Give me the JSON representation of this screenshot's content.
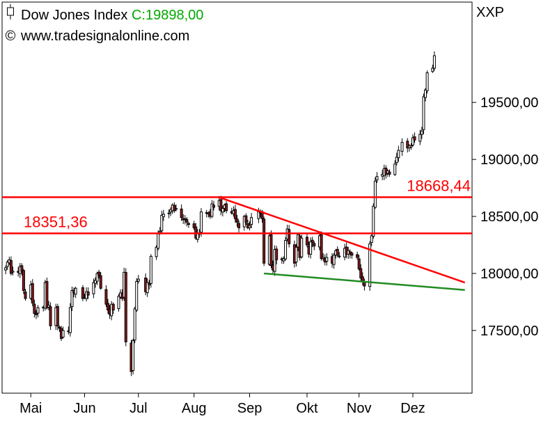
{
  "header": {
    "title": "Dow Jones Index",
    "close_label": "C:19898,00",
    "copyright_symbol": "©",
    "source": "www.tradesignalonline.com",
    "symbol": "XXP"
  },
  "colors": {
    "up_candle": "#ffffff",
    "down_candle": "#8b1a1a",
    "wick": "#000000",
    "resistance": "#ff0000",
    "support": "#228b22",
    "close_value": "#00aa00"
  },
  "chart_data": {
    "type": "candlestick",
    "title": "Dow Jones Index",
    "ylabel": "",
    "xlabel": "",
    "ylim": [
      16950,
      20380
    ],
    "y_ticks": [
      "17500,00",
      "18000,00",
      "18500,00",
      "19000,00",
      "19500,00"
    ],
    "y_tick_values": [
      17500,
      18000,
      18500,
      19000,
      19500
    ],
    "x_ticks": [
      "Mai",
      "Jun",
      "Jul",
      "Aug",
      "Sep",
      "Okt",
      "Nov",
      "Dez"
    ],
    "x_tick_dates": [
      "2016-05-02",
      "2016-06-01",
      "2016-07-01",
      "2016-08-01",
      "2016-09-01",
      "2016-10-03",
      "2016-11-01",
      "2016-12-01"
    ],
    "horizontal_lines": [
      {
        "value": 18351.36,
        "label": "18351,36",
        "color": "#ff0000"
      },
      {
        "value": 18668.44,
        "label": "18668,44",
        "color": "#ff0000"
      }
    ],
    "trendlines": [
      {
        "name": "",
        "from": [
          "2016-08-15",
          18668
        ],
        "to": [
          "2016-12-30",
          17920
        ],
        "color": "#ff0000"
      },
      {
        "name": "",
        "from": [
          "2016-09-09",
          18000
        ],
        "to": [
          "2016-12-30",
          17855
        ],
        "color": "#228b22"
      }
    ],
    "closes": [
      [
        "2016-04-18",
        18050
      ],
      [
        "2016-04-19",
        18100
      ],
      [
        "2016-04-20",
        18120
      ],
      [
        "2016-04-21",
        18000
      ],
      [
        "2016-04-22",
        18020
      ],
      [
        "2016-04-25",
        18010
      ],
      [
        "2016-04-26",
        18060
      ],
      [
        "2016-04-27",
        18020
      ],
      [
        "2016-04-28",
        17850
      ],
      [
        "2016-04-29",
        17780
      ],
      [
        "2016-05-02",
        17900
      ],
      [
        "2016-05-03",
        17740
      ],
      [
        "2016-05-04",
        17650
      ],
      [
        "2016-05-05",
        17640
      ],
      [
        "2016-05-06",
        17700
      ],
      [
        "2016-05-09",
        17705
      ],
      [
        "2016-05-10",
        17920
      ],
      [
        "2016-05-11",
        17700
      ],
      [
        "2016-05-12",
        17720
      ],
      [
        "2016-05-13",
        17540
      ],
      [
        "2016-05-16",
        17700
      ],
      [
        "2016-05-17",
        17540
      ],
      [
        "2016-05-18",
        17520
      ],
      [
        "2016-05-19",
        17430
      ],
      [
        "2016-05-20",
        17500
      ],
      [
        "2016-05-23",
        17490
      ],
      [
        "2016-05-24",
        17700
      ],
      [
        "2016-05-25",
        17850
      ],
      [
        "2016-05-26",
        17830
      ],
      [
        "2016-05-27",
        17870
      ],
      [
        "2016-05-31",
        17780
      ],
      [
        "2016-06-01",
        17790
      ],
      [
        "2016-06-02",
        17840
      ],
      [
        "2016-06-03",
        17810
      ],
      [
        "2016-06-06",
        17920
      ],
      [
        "2016-06-07",
        17940
      ],
      [
        "2016-06-08",
        18000
      ],
      [
        "2016-06-09",
        17980
      ],
      [
        "2016-06-10",
        17870
      ],
      [
        "2016-06-13",
        17730
      ],
      [
        "2016-06-14",
        17680
      ],
      [
        "2016-06-15",
        17640
      ],
      [
        "2016-06-16",
        17730
      ],
      [
        "2016-06-17",
        17680
      ],
      [
        "2016-06-20",
        17800
      ],
      [
        "2016-06-21",
        17830
      ],
      [
        "2016-06-22",
        17780
      ],
      [
        "2016-06-23",
        18010
      ],
      [
        "2016-06-24",
        17400
      ],
      [
        "2016-06-27",
        17140
      ],
      [
        "2016-06-28",
        17410
      ],
      [
        "2016-06-29",
        17690
      ],
      [
        "2016-06-30",
        17930
      ],
      [
        "2016-07-01",
        17950
      ],
      [
        "2016-07-05",
        17840
      ],
      [
        "2016-07-06",
        17920
      ],
      [
        "2016-07-07",
        17900
      ],
      [
        "2016-07-08",
        18150
      ],
      [
        "2016-07-11",
        18230
      ],
      [
        "2016-07-12",
        18350
      ],
      [
        "2016-07-13",
        18370
      ],
      [
        "2016-07-14",
        18510
      ],
      [
        "2016-07-15",
        18520
      ],
      [
        "2016-07-18",
        18530
      ],
      [
        "2016-07-19",
        18560
      ],
      [
        "2016-07-20",
        18600
      ],
      [
        "2016-07-21",
        18550
      ],
      [
        "2016-07-22",
        18570
      ],
      [
        "2016-07-25",
        18490
      ],
      [
        "2016-07-26",
        18470
      ],
      [
        "2016-07-27",
        18470
      ],
      [
        "2016-07-28",
        18450
      ],
      [
        "2016-07-29",
        18430
      ],
      [
        "2016-08-01",
        18400
      ],
      [
        "2016-08-02",
        18310
      ],
      [
        "2016-08-03",
        18350
      ],
      [
        "2016-08-04",
        18350
      ],
      [
        "2016-08-05",
        18540
      ],
      [
        "2016-08-08",
        18530
      ],
      [
        "2016-08-09",
        18530
      ],
      [
        "2016-08-10",
        18500
      ],
      [
        "2016-08-11",
        18610
      ],
      [
        "2016-08-12",
        18580
      ],
      [
        "2016-08-15",
        18640
      ],
      [
        "2016-08-16",
        18550
      ],
      [
        "2016-08-17",
        18570
      ],
      [
        "2016-08-18",
        18600
      ],
      [
        "2016-08-19",
        18550
      ],
      [
        "2016-08-22",
        18530
      ],
      [
        "2016-08-23",
        18550
      ],
      [
        "2016-08-24",
        18480
      ],
      [
        "2016-08-25",
        18450
      ],
      [
        "2016-08-26",
        18400
      ],
      [
        "2016-08-29",
        18500
      ],
      [
        "2016-08-30",
        18450
      ],
      [
        "2016-08-31",
        18400
      ],
      [
        "2016-09-01",
        18420
      ],
      [
        "2016-09-02",
        18490
      ],
      [
        "2016-09-06",
        18540
      ],
      [
        "2016-09-07",
        18530
      ],
      [
        "2016-09-08",
        18480
      ],
      [
        "2016-09-09",
        18090
      ],
      [
        "2016-09-12",
        18330
      ],
      [
        "2016-09-13",
        18070
      ],
      [
        "2016-09-14",
        18030
      ],
      [
        "2016-09-15",
        18210
      ],
      [
        "2016-09-16",
        18120
      ],
      [
        "2016-09-19",
        18120
      ],
      [
        "2016-09-20",
        18130
      ],
      [
        "2016-09-21",
        18290
      ],
      [
        "2016-09-22",
        18390
      ],
      [
        "2016-09-23",
        18260
      ],
      [
        "2016-09-26",
        18090
      ],
      [
        "2016-09-27",
        18230
      ],
      [
        "2016-09-28",
        18340
      ],
      [
        "2016-09-29",
        18140
      ],
      [
        "2016-09-30",
        18310
      ],
      [
        "2016-10-03",
        18250
      ],
      [
        "2016-10-04",
        18170
      ],
      [
        "2016-10-05",
        18280
      ],
      [
        "2016-10-06",
        18270
      ],
      [
        "2016-10-07",
        18240
      ],
      [
        "2016-10-10",
        18330
      ],
      [
        "2016-10-11",
        18130
      ],
      [
        "2016-10-12",
        18140
      ],
      [
        "2016-10-13",
        18100
      ],
      [
        "2016-10-14",
        18140
      ],
      [
        "2016-10-17",
        18090
      ],
      [
        "2016-10-18",
        18160
      ],
      [
        "2016-10-19",
        18200
      ],
      [
        "2016-10-20",
        18160
      ],
      [
        "2016-10-21",
        18150
      ],
      [
        "2016-10-24",
        18220
      ],
      [
        "2016-10-25",
        18170
      ],
      [
        "2016-10-26",
        18200
      ],
      [
        "2016-10-27",
        18170
      ],
      [
        "2016-10-28",
        18160
      ],
      [
        "2016-10-31",
        18140
      ],
      [
        "2016-11-01",
        18040
      ],
      [
        "2016-11-02",
        17960
      ],
      [
        "2016-11-03",
        17930
      ],
      [
        "2016-11-04",
        17890
      ],
      [
        "2016-11-07",
        18260
      ],
      [
        "2016-11-08",
        18330
      ],
      [
        "2016-11-09",
        18590
      ],
      [
        "2016-11-10",
        18810
      ],
      [
        "2016-11-11",
        18850
      ],
      [
        "2016-11-14",
        18870
      ],
      [
        "2016-11-15",
        18920
      ],
      [
        "2016-11-16",
        18870
      ],
      [
        "2016-11-17",
        18900
      ],
      [
        "2016-11-18",
        18870
      ],
      [
        "2016-11-21",
        18960
      ],
      [
        "2016-11-22",
        19020
      ],
      [
        "2016-11-23",
        19080
      ],
      [
        "2016-11-25",
        19150
      ],
      [
        "2016-11-28",
        19100
      ],
      [
        "2016-11-29",
        19120
      ],
      [
        "2016-11-30",
        19120
      ],
      [
        "2016-12-01",
        19190
      ],
      [
        "2016-12-02",
        19170
      ],
      [
        "2016-12-05",
        19220
      ],
      [
        "2016-12-06",
        19250
      ],
      [
        "2016-12-07",
        19550
      ],
      [
        "2016-12-08",
        19610
      ],
      [
        "2016-12-09",
        19760
      ],
      [
        "2016-12-12",
        19800
      ],
      [
        "2016-12-13",
        19910
      ]
    ]
  }
}
